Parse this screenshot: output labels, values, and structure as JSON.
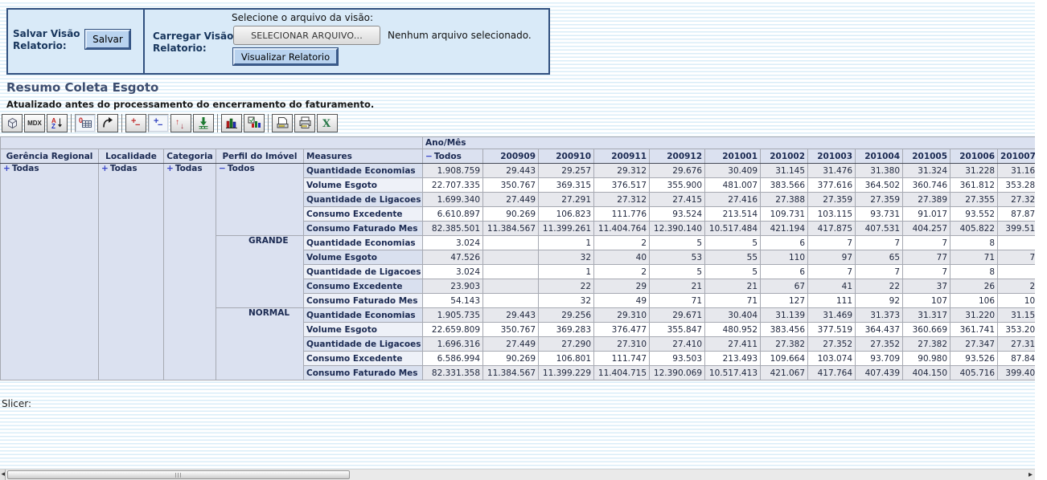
{
  "top_panel": {
    "save_label_line1": "Salvar Visão",
    "save_label_line2": "Relatorio:",
    "save_button": "Salvar",
    "load_label_line1": "Carregar Visão",
    "load_label_line2": "Relatorio:",
    "file_prompt": "Selecione o arquivo da visão:",
    "file_button": "SELECIONAR ARQUIVO...",
    "file_status": "Nenhum arquivo selecionado.",
    "view_report_button": "Visualizar Relatorio"
  },
  "report": {
    "title": "Resumo Coleta Esgoto",
    "subtitle": "Atualizado antes do processamento do encerramento do faturamento.",
    "slicer_label": "Slicer:"
  },
  "toolbar": {
    "buttons": [
      {
        "name": "cube-navigator-icon",
        "icon": "cube"
      },
      {
        "name": "mdx-button",
        "label": "MDX"
      },
      {
        "name": "sort-icon",
        "icon": "sort"
      },
      {
        "separator": true
      },
      {
        "name": "suppress-empty-icon",
        "icon": "zero-grid",
        "pressed": true
      },
      {
        "name": "swap-axes-icon",
        "icon": "swap"
      },
      {
        "separator": true
      },
      {
        "name": "drill-member-icon",
        "icon": "plusminus-red"
      },
      {
        "name": "drill-position-icon",
        "icon": "plusminus-blue",
        "pressed": true
      },
      {
        "name": "drill-replace-icon",
        "icon": "updown"
      },
      {
        "name": "drill-through-icon",
        "icon": "drill-through"
      },
      {
        "separator": true
      },
      {
        "name": "chart-icon",
        "icon": "chart"
      },
      {
        "name": "chart-config-icon",
        "icon": "chart-config"
      },
      {
        "separator": true
      },
      {
        "name": "print-config-icon",
        "icon": "print-config"
      },
      {
        "name": "print-icon",
        "icon": "print"
      },
      {
        "name": "excel-export-icon",
        "icon": "excel"
      }
    ]
  },
  "pivot": {
    "year_month_label": "Ano/Mês",
    "dim_headers": [
      "Gerência Regional",
      "Localidade",
      "Categoria",
      "Perfil do Imóvel",
      "Measures"
    ],
    "dims": [
      {
        "value": "Todas",
        "state": "+"
      },
      {
        "value": "Todas",
        "state": "+"
      },
      {
        "value": "Todas",
        "state": "+"
      }
    ],
    "col_total": {
      "label": "Todos",
      "state": "−"
    },
    "months": [
      "200909",
      "200910",
      "200911",
      "200912",
      "201001",
      "201002",
      "201003",
      "201004",
      "201005",
      "201006",
      "201007"
    ],
    "groups": [
      {
        "perfil": "Todos",
        "state": "−",
        "rows": [
          {
            "measure": "Quantidade Economias",
            "values": [
              "1.908.759",
              "29.443",
              "29.257",
              "29.312",
              "29.676",
              "30.409",
              "31.145",
              "31.476",
              "31.380",
              "31.324",
              "31.228",
              "31.16"
            ]
          },
          {
            "measure": "Volume Esgoto",
            "values": [
              "22.707.335",
              "350.767",
              "369.315",
              "376.517",
              "355.900",
              "481.007",
              "383.566",
              "377.616",
              "364.502",
              "360.746",
              "361.812",
              "353.28"
            ]
          },
          {
            "measure": "Quantidade de Ligacoes",
            "values": [
              "1.699.340",
              "27.449",
              "27.291",
              "27.312",
              "27.415",
              "27.416",
              "27.388",
              "27.359",
              "27.359",
              "27.389",
              "27.355",
              "27.32"
            ]
          },
          {
            "measure": "Consumo Excedente",
            "values": [
              "6.610.897",
              "90.269",
              "106.823",
              "111.776",
              "93.524",
              "213.514",
              "109.731",
              "103.115",
              "93.731",
              "91.017",
              "93.552",
              "87.87"
            ]
          },
          {
            "measure": "Consumo Faturado Mes",
            "values": [
              "82.385.501",
              "11.384.567",
              "11.399.261",
              "11.404.764",
              "12.390.140",
              "10.517.484",
              "421.194",
              "417.875",
              "407.531",
              "404.257",
              "405.822",
              "399.51"
            ]
          }
        ]
      },
      {
        "perfil": "GRANDE",
        "state": "",
        "rows": [
          {
            "measure": "Quantidade Economias",
            "values": [
              "3.024",
              "",
              "1",
              "2",
              "5",
              "5",
              "6",
              "7",
              "7",
              "7",
              "8",
              ""
            ]
          },
          {
            "measure": "Volume Esgoto",
            "values": [
              "47.526",
              "",
              "32",
              "40",
              "53",
              "55",
              "110",
              "97",
              "65",
              "77",
              "71",
              "7"
            ]
          },
          {
            "measure": "Quantidade de Ligacoes",
            "values": [
              "3.024",
              "",
              "1",
              "2",
              "5",
              "5",
              "6",
              "7",
              "7",
              "7",
              "8",
              ""
            ]
          },
          {
            "measure": "Consumo Excedente",
            "values": [
              "23.903",
              "",
              "22",
              "29",
              "21",
              "21",
              "67",
              "41",
              "22",
              "37",
              "26",
              "2"
            ]
          },
          {
            "measure": "Consumo Faturado Mes",
            "values": [
              "54.143",
              "",
              "32",
              "49",
              "71",
              "71",
              "127",
              "111",
              "92",
              "107",
              "106",
              "10"
            ]
          }
        ]
      },
      {
        "perfil": "NORMAL",
        "state": "",
        "rows": [
          {
            "measure": "Quantidade Economias",
            "values": [
              "1.905.735",
              "29.443",
              "29.256",
              "29.310",
              "29.671",
              "30.404",
              "31.139",
              "31.469",
              "31.373",
              "31.317",
              "31.220",
              "31.15"
            ]
          },
          {
            "measure": "Volume Esgoto",
            "values": [
              "22.659.809",
              "350.767",
              "369.283",
              "376.477",
              "355.847",
              "480.952",
              "383.456",
              "377.519",
              "364.437",
              "360.669",
              "361.741",
              "353.20"
            ]
          },
          {
            "measure": "Quantidade de Ligacoes",
            "values": [
              "1.696.316",
              "27.449",
              "27.290",
              "27.310",
              "27.410",
              "27.411",
              "27.382",
              "27.352",
              "27.352",
              "27.382",
              "27.347",
              "27.31"
            ]
          },
          {
            "measure": "Consumo Excedente",
            "values": [
              "6.586.994",
              "90.269",
              "106.801",
              "111.747",
              "93.503",
              "213.493",
              "109.664",
              "103.074",
              "93.709",
              "90.980",
              "93.526",
              "87.84"
            ]
          },
          {
            "measure": "Consumo Faturado Mes",
            "values": [
              "82.331.358",
              "11.384.567",
              "11.399.229",
              "11.404.715",
              "12.390.069",
              "10.517.413",
              "421.067",
              "417.764",
              "407.439",
              "404.150",
              "405.716",
              "399.40"
            ]
          }
        ]
      }
    ]
  },
  "colors": {
    "panel_bg": "#d9eaf8",
    "panel_border": "#31507f",
    "blue_button_bg": "#b9d3ef",
    "header_bg": "#dbe1f0",
    "stripe_blue": "#daedf8",
    "expand_icon_blue": "#3946c8",
    "title_color": "#3d4e70"
  }
}
